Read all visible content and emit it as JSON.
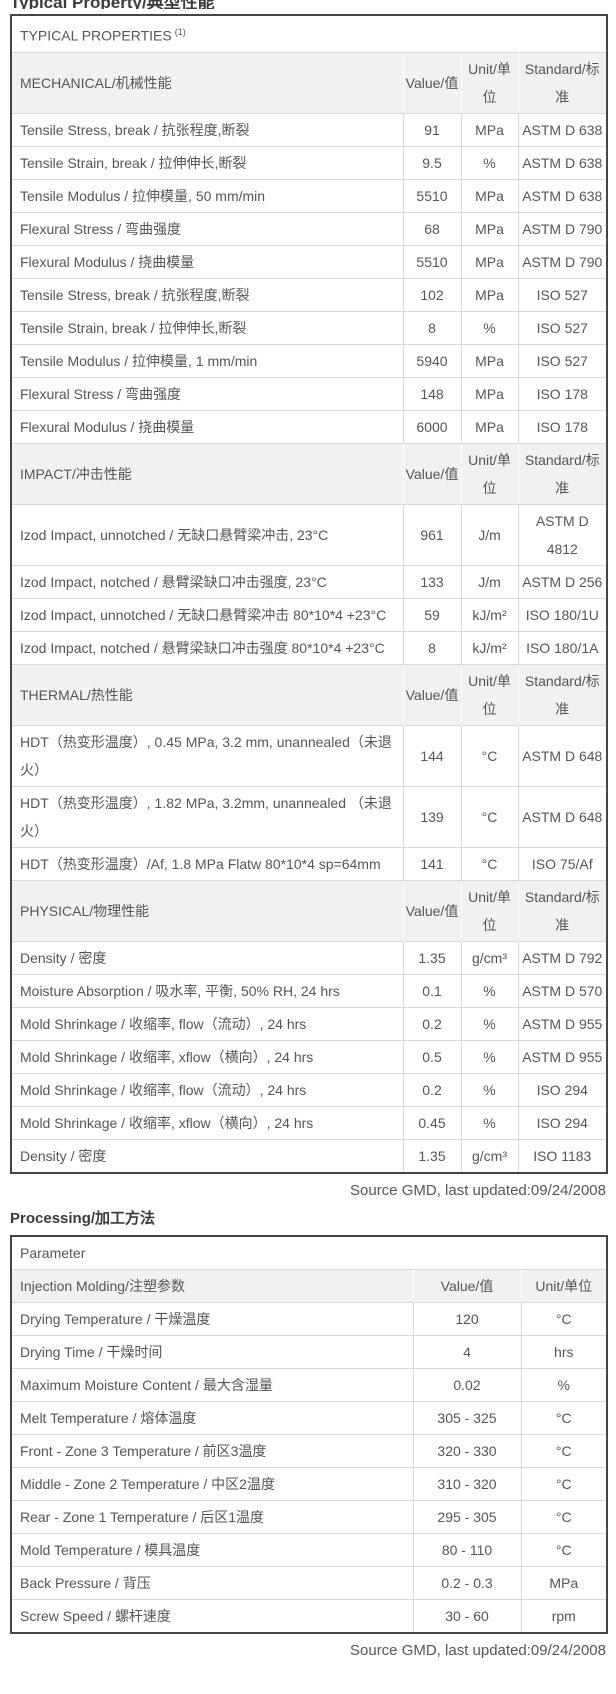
{
  "page": {
    "top_heading_partial": "Typical Property/典型性能",
    "source_note_1": "Source GMD, last updated:09/24/2008",
    "processing_heading": "Processing/加工方法",
    "source_note_2": "Source GMD, last updated:09/24/2008"
  },
  "colors": {
    "text": "#55565b",
    "heading_text": "#3b3b3a",
    "section_header_bg": "#f1f1f1",
    "outer_border": "#454545",
    "inner_border": "#d9d9d9",
    "page_bg": "#ffffff"
  },
  "properties_table": {
    "title": "TYPICAL PROPERTIES",
    "title_superscript": "(1)",
    "sections": [
      {
        "header": "MECHANICAL/机械性能",
        "col_headers": [
          "Value/值",
          "Unit/单位",
          "Standard/标准"
        ],
        "rows": [
          {
            "property": "Tensile Stress, break / 抗张程度,断裂",
            "value": "91",
            "unit": "MPa",
            "standard": "ASTM D 638"
          },
          {
            "property": "Tensile Strain, break / 拉伸伸长,断裂",
            "value": "9.5",
            "unit": "%",
            "standard": "ASTM D 638"
          },
          {
            "property": "Tensile Modulus / 拉伸模量, 50 mm/min",
            "value": "5510",
            "unit": "MPa",
            "standard": "ASTM D 638"
          },
          {
            "property": "Flexural Stress / 弯曲强度",
            "value": "68",
            "unit": "MPa",
            "standard": "ASTM D 790"
          },
          {
            "property": "Flexural Modulus / 挠曲模量",
            "value": "5510",
            "unit": "MPa",
            "standard": "ASTM D 790"
          },
          {
            "property": "Tensile Stress, break / 抗张程度,断裂",
            "value": "102",
            "unit": "MPa",
            "standard": "ISO 527"
          },
          {
            "property": "Tensile Strain, break / 拉伸伸长,断裂",
            "value": "8",
            "unit": "%",
            "standard": "ISO 527"
          },
          {
            "property": "Tensile Modulus / 拉伸模量, 1 mm/min",
            "value": "5940",
            "unit": "MPa",
            "standard": "ISO 527"
          },
          {
            "property": "Flexural Stress / 弯曲强度",
            "value": "148",
            "unit": "MPa",
            "standard": "ISO 178"
          },
          {
            "property": "Flexural Modulus / 挠曲模量",
            "value": "6000",
            "unit": "MPa",
            "standard": "ISO 178"
          }
        ]
      },
      {
        "header": "IMPACT/冲击性能",
        "col_headers": [
          "Value/值",
          "Unit/单位",
          "Standard/标准"
        ],
        "rows": [
          {
            "property": "Izod Impact, unnotched / 无缺口悬臂梁冲击, 23°C",
            "value": "961",
            "unit": "J/m",
            "standard": "ASTM D 4812"
          },
          {
            "property": "Izod Impact, notched / 悬臂梁缺口冲击强度, 23°C",
            "value": "133",
            "unit": "J/m",
            "standard": "ASTM D 256"
          },
          {
            "property": "Izod Impact, unnotched / 无缺口悬臂梁冲击 80*10*4 +23°C",
            "value": "59",
            "unit": "kJ/m²",
            "standard": "ISO 180/1U"
          },
          {
            "property": "Izod Impact, notched / 悬臂梁缺口冲击强度 80*10*4 +23°C",
            "value": "8",
            "unit": "kJ/m²",
            "standard": "ISO 180/1A"
          }
        ]
      },
      {
        "header": "THERMAL/热性能",
        "col_headers": [
          "Value/值",
          "Unit/单位",
          "Standard/标准"
        ],
        "rows": [
          {
            "property": "HDT（热变形温度）, 0.45 MPa, 3.2 mm, unannealed（未退火）",
            "value": "144",
            "unit": "°C",
            "standard": "ASTM D 648"
          },
          {
            "property": "HDT（热变形温度）, 1.82 MPa, 3.2mm, unannealed （未退火）",
            "value": "139",
            "unit": "°C",
            "standard": "ASTM D 648"
          },
          {
            "property": "HDT（热变形温度）/Af, 1.8 MPa Flatw 80*10*4 sp=64mm",
            "value": "141",
            "unit": "°C",
            "standard": "ISO 75/Af"
          }
        ]
      },
      {
        "header": "PHYSICAL/物理性能",
        "col_headers": [
          "Value/值",
          "Unit/单位",
          "Standard/标准"
        ],
        "rows": [
          {
            "property": "Density / 密度",
            "value": "1.35",
            "unit": "g/cm³",
            "standard": "ASTM D 792"
          },
          {
            "property": "Moisture Absorption / 吸水率, 平衡, 50% RH, 24 hrs",
            "value": "0.1",
            "unit": "%",
            "standard": "ASTM D 570"
          },
          {
            "property": "Mold Shrinkage / 收缩率, flow（流动）, 24 hrs",
            "value": "0.2",
            "unit": "%",
            "standard": "ASTM D 955"
          },
          {
            "property": "Mold Shrinkage / 收缩率, xflow（横向）, 24 hrs",
            "value": "0.5",
            "unit": "%",
            "standard": "ASTM D 955"
          },
          {
            "property": "Mold Shrinkage / 收缩率, flow（流动）, 24 hrs",
            "value": "0.2",
            "unit": "%",
            "standard": "ISO 294"
          },
          {
            "property": "Mold Shrinkage / 收缩率, xflow（横向）, 24 hrs",
            "value": "0.45",
            "unit": "%",
            "standard": "ISO 294"
          },
          {
            "property": "Density / 密度",
            "value": "1.35",
            "unit": "g/cm³",
            "standard": "ISO 1183"
          }
        ]
      }
    ]
  },
  "processing_table": {
    "title": "Parameter",
    "section_header": "Injection Molding/注塑参数",
    "col_headers": [
      "Value/值",
      "Unit/单位"
    ],
    "rows": [
      {
        "parameter": "Drying Temperature / 干燥温度",
        "value": "120",
        "unit": "°C"
      },
      {
        "parameter": "Drying Time / 干燥时间",
        "value": "4",
        "unit": "hrs"
      },
      {
        "parameter": "Maximum Moisture Content / 最大含湿量",
        "value": "0.02",
        "unit": "%"
      },
      {
        "parameter": "Melt Temperature / 熔体温度",
        "value": "305 - 325",
        "unit": "°C"
      },
      {
        "parameter": "Front - Zone 3 Temperature / 前区3温度",
        "value": "320 - 330",
        "unit": "°C"
      },
      {
        "parameter": "Middle - Zone 2 Temperature / 中区2温度",
        "value": "310 - 320",
        "unit": "°C"
      },
      {
        "parameter": "Rear - Zone 1 Temperature / 后区1温度",
        "value": "295 - 305",
        "unit": "°C"
      },
      {
        "parameter": "Mold Temperature / 模具温度",
        "value": "80 - 110",
        "unit": "°C"
      },
      {
        "parameter": "Back Pressure / 背压",
        "value": "0.2 - 0.3",
        "unit": "MPa"
      },
      {
        "parameter": "Screw Speed / 螺杆速度",
        "value": "30 - 60",
        "unit": "rpm"
      }
    ]
  }
}
